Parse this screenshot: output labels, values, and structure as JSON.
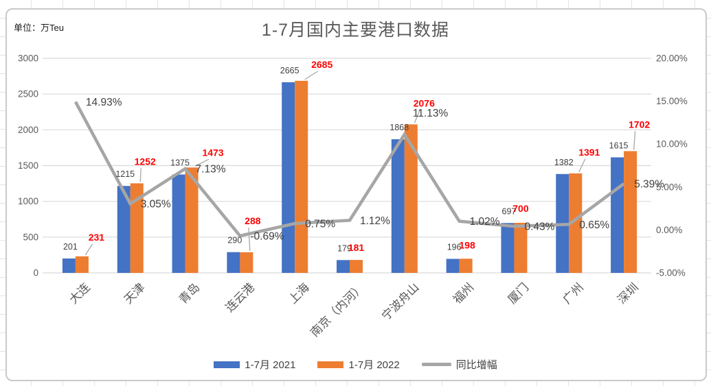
{
  "unit_label": "单位：万Teu",
  "title": "1-7月国内主要港口数据",
  "legend": [
    {
      "label": "1-7月 2021",
      "color": "#4472C4",
      "swatch": "bar"
    },
    {
      "label": "1-7月 2022",
      "color": "#ED7D31",
      "swatch": "bar"
    },
    {
      "label": "同比增幅",
      "color": "#A6A6A6",
      "swatch": "line"
    }
  ],
  "colors": {
    "bar_2021": "#4472C4",
    "bar_2022": "#ED7D31",
    "growth_line": "#A6A6A6",
    "label_2021": "#404040",
    "label_2022": "#FF0000",
    "gridline": "#D9D9D9",
    "axis_text": "#595959",
    "percent_text": "#404040"
  },
  "chart_data": {
    "type": "bar",
    "subtype": "combo-bar-line-dual-axis",
    "title": "1-7月国内主要港口数据",
    "unit": "万Teu",
    "categories": [
      "大连",
      "天津",
      "青岛",
      "连云港",
      "上海",
      "南京（内河）",
      "宁波舟山",
      "福州",
      "厦门",
      "广州",
      "深圳"
    ],
    "series": [
      {
        "name": "1-7月 2021",
        "type": "bar",
        "axis": "left",
        "color": "#4472C4",
        "values": [
          201,
          1215,
          1375,
          290,
          2665,
          179,
          1868,
          196,
          697,
          1382,
          1615
        ],
        "labels": [
          "201",
          "1215",
          "1375",
          "290",
          "2665",
          "179",
          "1868",
          "196",
          "697",
          "1382",
          "1615"
        ]
      },
      {
        "name": "1-7月 2022",
        "type": "bar",
        "axis": "left",
        "color": "#ED7D31",
        "values": [
          231,
          1252,
          1473,
          288,
          2685,
          181,
          2076,
          198,
          700,
          1391,
          1702
        ],
        "labels": [
          "231",
          "1252",
          "1473",
          "288",
          "2685",
          "181",
          "2076",
          "198",
          "700",
          "1391",
          "1702"
        ]
      },
      {
        "name": "同比增幅",
        "type": "line",
        "axis": "right",
        "color": "#A6A6A6",
        "values_percent": [
          14.93,
          3.05,
          7.13,
          -0.69,
          0.75,
          1.12,
          11.13,
          1.02,
          0.43,
          0.65,
          5.39
        ],
        "labels": [
          "14.93%",
          "3.05%",
          "7.13%",
          "-0.69%",
          "0.75%",
          "1.12%",
          "11.13%",
          "1.02%",
          "0.43%",
          "0.65%",
          "5.39%"
        ]
      }
    ],
    "left_axis": {
      "min": 0,
      "max": 3000,
      "step": 500,
      "tick_labels": [
        "3000",
        "2500",
        "2000",
        "1500",
        "1000",
        "500",
        "0"
      ]
    },
    "right_axis": {
      "min": -5,
      "max": 20,
      "step": 5,
      "tick_labels": [
        "20.00%",
        "15.00%",
        "10.00%",
        "5.00%",
        "0.00%",
        "-5.00%"
      ],
      "tick_values": [
        20,
        15,
        10,
        5,
        0,
        -5
      ]
    },
    "grid": "horizontal",
    "legend_position": "bottom"
  }
}
